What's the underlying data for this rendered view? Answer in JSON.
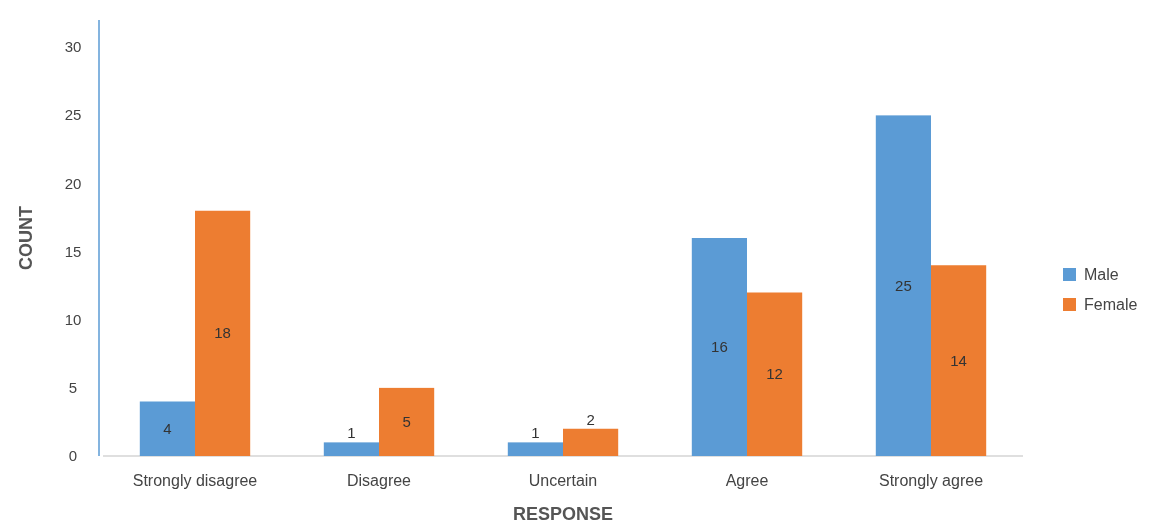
{
  "chart_data": {
    "type": "bar",
    "xlabel": "RESPONSE",
    "ylabel": "COUNT",
    "categories": [
      "Strongly disagree",
      "Disagree",
      "Uncertain",
      "Agree",
      "Strongly agree"
    ],
    "series": [
      {
        "name": "Male",
        "color": "#5b9bd5",
        "values": [
          4,
          1,
          1,
          16,
          25
        ]
      },
      {
        "name": "Female",
        "color": "#ed7d31",
        "values": [
          18,
          5,
          2,
          12,
          14
        ]
      }
    ],
    "ylim": [
      0,
      32
    ],
    "yticks": [
      0,
      5,
      10,
      15,
      20,
      25,
      30
    ],
    "grid": false,
    "legend": "right",
    "data_labels": true
  }
}
